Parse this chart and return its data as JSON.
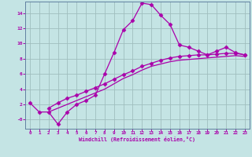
{
  "xlabel": "Windchill (Refroidissement éolien,°C)",
  "bg_color": "#c4e4e4",
  "grid_color": "#a0bebe",
  "line_color": "#aa00aa",
  "spine_color": "#6080a0",
  "xlim": [
    -0.5,
    23.5
  ],
  "ylim": [
    -1.2,
    15.5
  ],
  "xticks": [
    0,
    1,
    2,
    3,
    4,
    5,
    6,
    7,
    8,
    9,
    10,
    11,
    12,
    13,
    14,
    15,
    16,
    17,
    18,
    19,
    20,
    21,
    22,
    23
  ],
  "yticks": [
    0,
    2,
    4,
    6,
    8,
    10,
    12,
    14
  ],
  "ytick_labels": [
    "-0",
    "2",
    "4",
    "6",
    "8",
    "10",
    "12",
    "14"
  ],
  "series1_x": [
    0,
    1,
    2,
    3,
    4,
    5,
    6,
    7,
    8,
    9,
    10,
    11,
    12,
    13,
    14,
    15,
    16,
    17,
    18,
    19,
    20,
    21,
    22,
    23
  ],
  "series1_y": [
    2.2,
    1.0,
    1.0,
    -0.6,
    1.0,
    2.0,
    2.5,
    3.2,
    6.0,
    8.8,
    11.8,
    13.0,
    15.3,
    15.1,
    13.7,
    12.5,
    9.8,
    9.5,
    9.0,
    8.5,
    9.0,
    9.5,
    8.8,
    8.5
  ],
  "series2_x": [
    2,
    3,
    4,
    5,
    6,
    7,
    8,
    9,
    10,
    11,
    12,
    13,
    14,
    15,
    16,
    17,
    18,
    19,
    20,
    21,
    22,
    23
  ],
  "series2_y": [
    1.5,
    2.2,
    2.8,
    3.2,
    3.7,
    4.2,
    4.7,
    5.3,
    5.9,
    6.4,
    7.0,
    7.4,
    7.8,
    8.1,
    8.3,
    8.4,
    8.5,
    8.5,
    8.6,
    8.7,
    8.7,
    8.5
  ],
  "series3_x": [
    2,
    3,
    4,
    5,
    6,
    7,
    8,
    9,
    10,
    11,
    12,
    13,
    14,
    15,
    16,
    17,
    18,
    19,
    20,
    21,
    22,
    23
  ],
  "series3_y": [
    1.0,
    1.5,
    2.0,
    2.5,
    3.0,
    3.5,
    4.0,
    4.7,
    5.4,
    5.9,
    6.5,
    7.0,
    7.3,
    7.6,
    7.8,
    7.9,
    8.0,
    8.1,
    8.2,
    8.3,
    8.4,
    8.3
  ],
  "marker": "D",
  "markersize": 2.5,
  "linewidth": 0.9
}
